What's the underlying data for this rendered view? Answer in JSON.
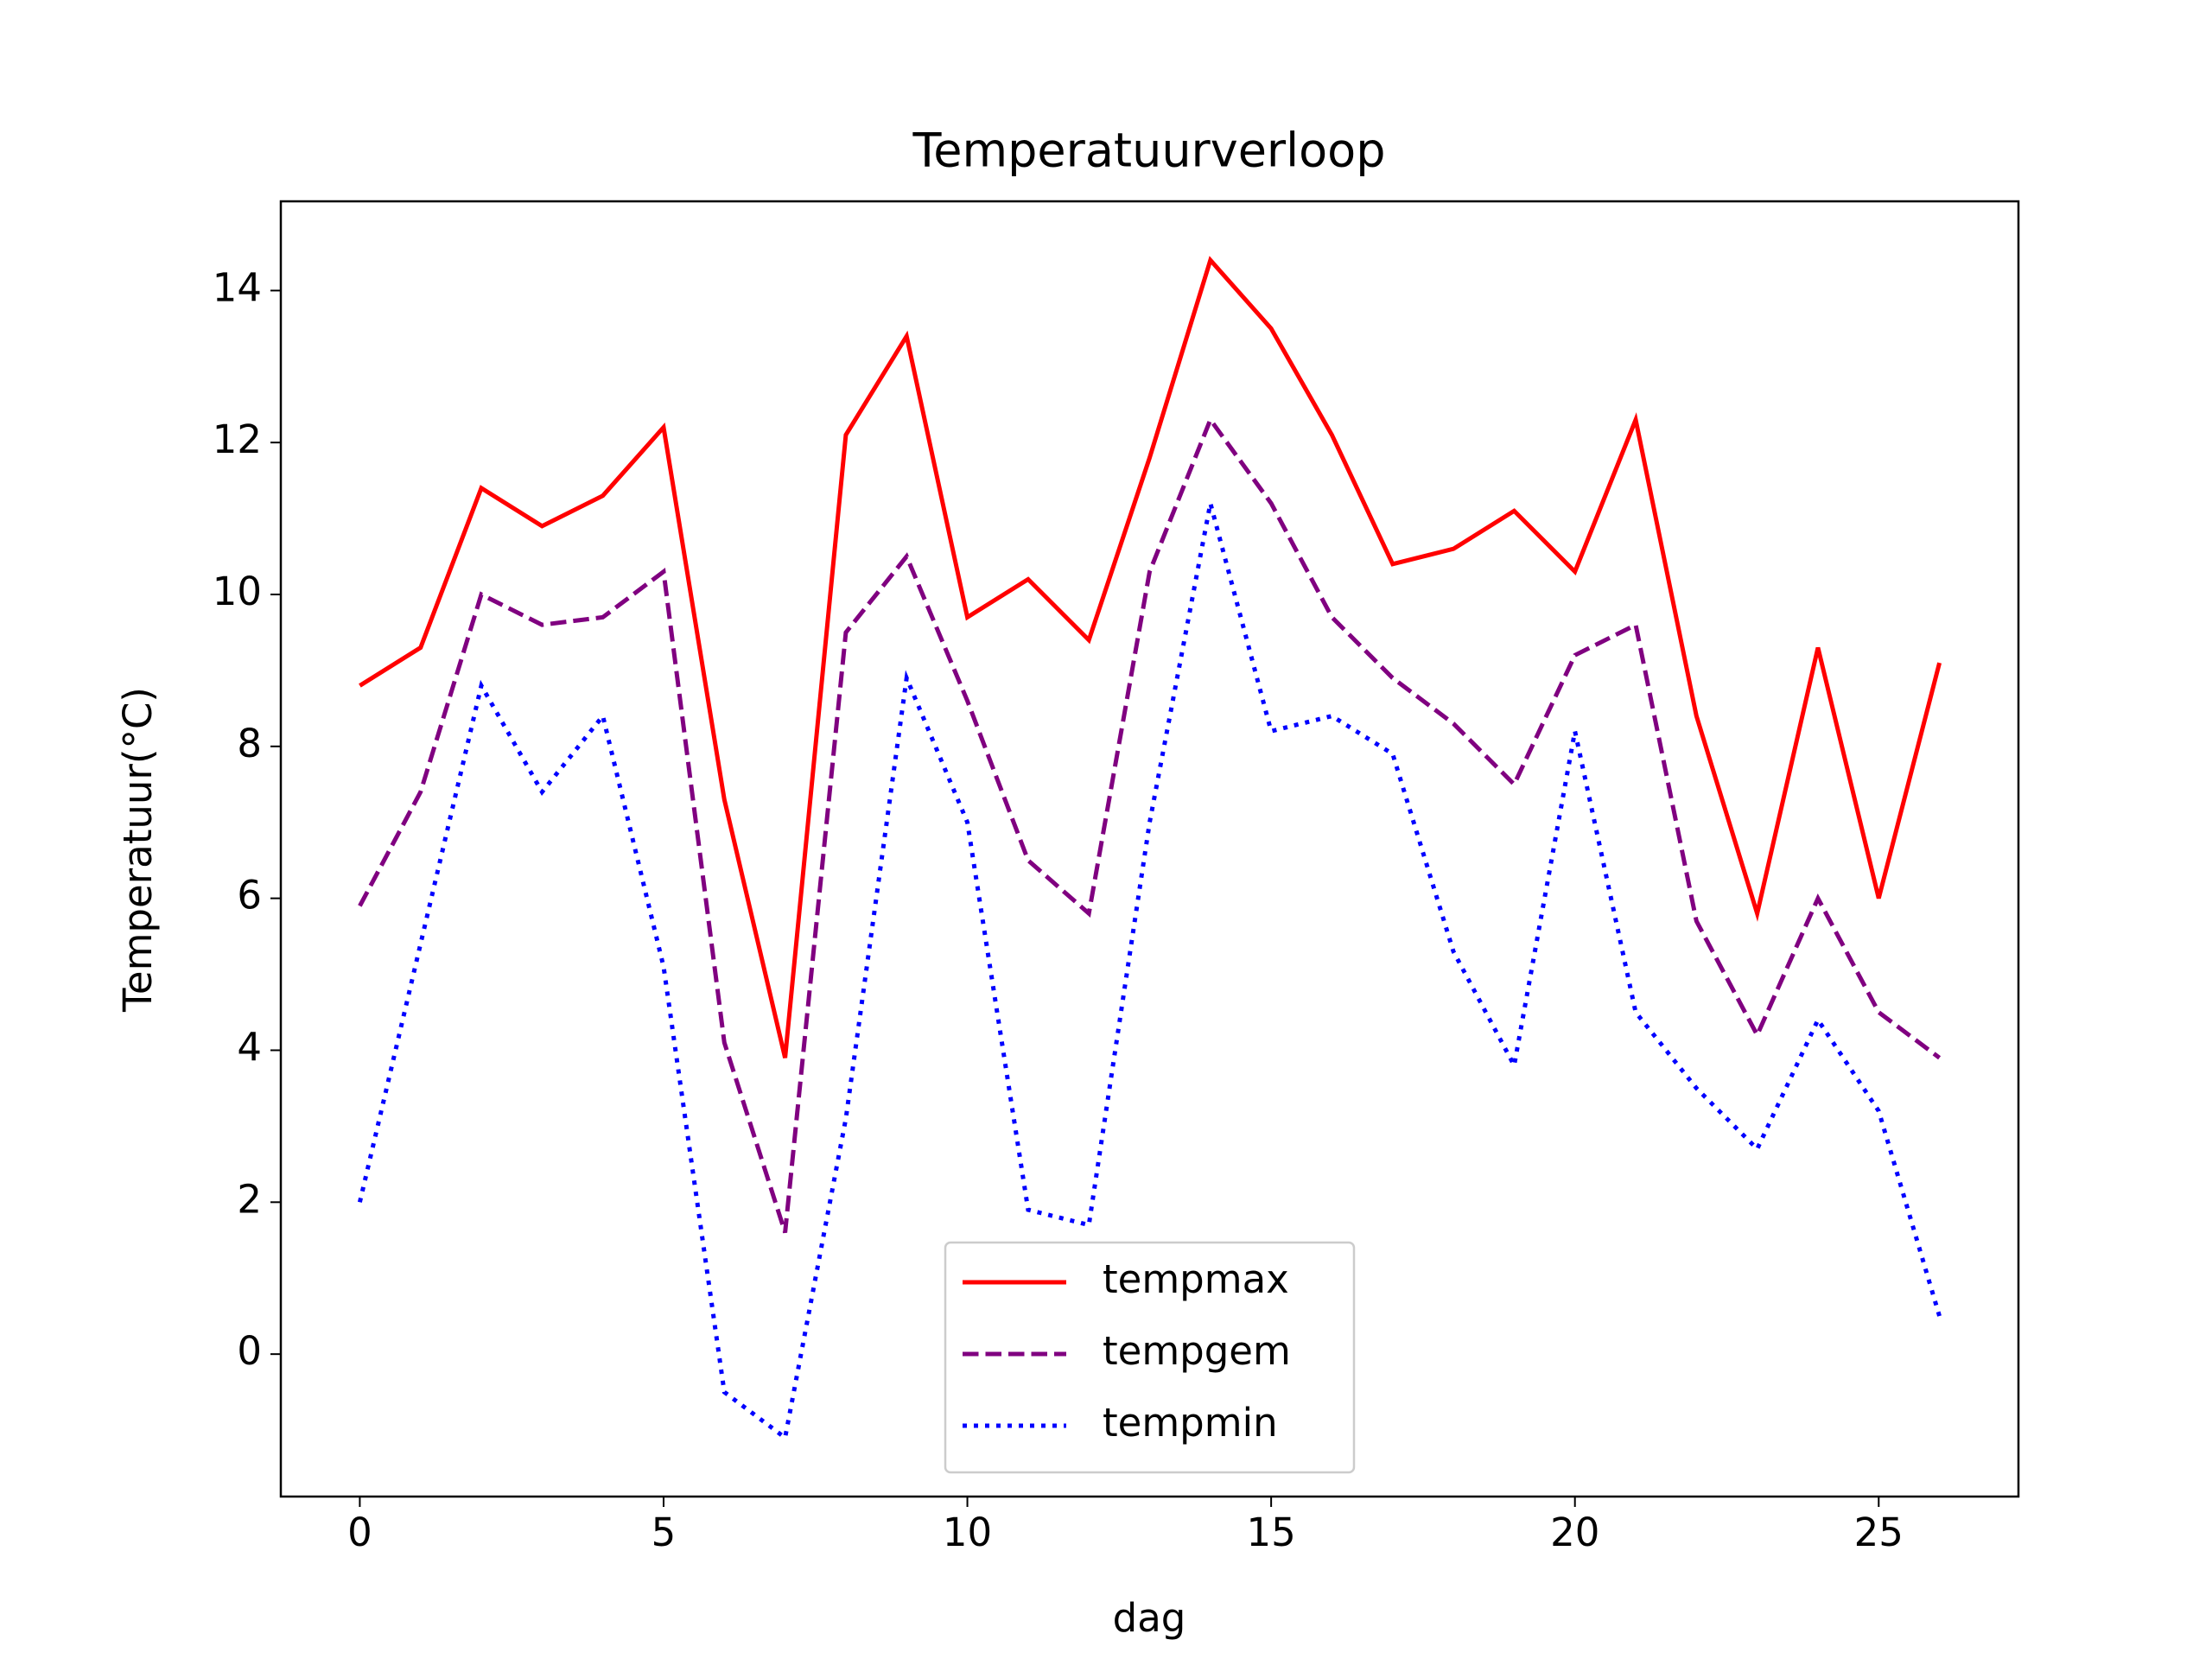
{
  "chart_data": {
    "type": "line",
    "title": "Temperatuurverloop",
    "xlabel": "dag",
    "ylabel": "Temperatuur(°C)",
    "x": [
      0,
      1,
      2,
      3,
      4,
      5,
      6,
      7,
      8,
      9,
      10,
      11,
      12,
      13,
      14,
      15,
      16,
      17,
      18,
      19,
      20,
      21,
      22,
      23,
      24,
      25,
      26
    ],
    "series": [
      {
        "name": "tempmax",
        "color": "#ff0000",
        "linestyle": "solid",
        "values": [
          8.8,
          9.3,
          11.4,
          10.9,
          11.3,
          12.2,
          7.3,
          3.9,
          12.1,
          13.4,
          9.7,
          10.2,
          9.4,
          11.8,
          14.4,
          13.5,
          12.1,
          10.4,
          10.6,
          11.1,
          10.3,
          12.3,
          8.4,
          5.8,
          9.3,
          6.0,
          9.1
        ]
      },
      {
        "name": "tempgem",
        "color": "#800080",
        "linestyle": "dashed",
        "values": [
          5.9,
          7.4,
          10.0,
          9.6,
          9.7,
          10.3,
          4.1,
          1.6,
          9.5,
          10.5,
          8.6,
          6.5,
          5.8,
          10.3,
          12.3,
          11.2,
          9.7,
          8.9,
          8.3,
          7.5,
          9.2,
          9.6,
          5.7,
          4.2,
          6.0,
          4.5,
          3.9
        ]
      },
      {
        "name": "tempmin",
        "color": "#0000ff",
        "linestyle": "dotted",
        "values": [
          2.0,
          5.4,
          8.8,
          7.4,
          8.4,
          5.1,
          -0.5,
          -1.1,
          3.1,
          8.9,
          7.0,
          1.9,
          1.7,
          7.0,
          11.2,
          8.2,
          8.4,
          7.9,
          5.3,
          3.8,
          8.2,
          4.5,
          3.5,
          2.7,
          4.4,
          3.2,
          0.5
        ]
      }
    ],
    "xlim": [
      -1.3,
      27.3
    ],
    "xticks": [
      0,
      5,
      10,
      15,
      20,
      25
    ],
    "ylim": [
      -1.875,
      15.175
    ],
    "yticks": [
      0,
      2,
      4,
      6,
      8,
      10,
      12,
      14
    ],
    "legend": "lower center"
  }
}
